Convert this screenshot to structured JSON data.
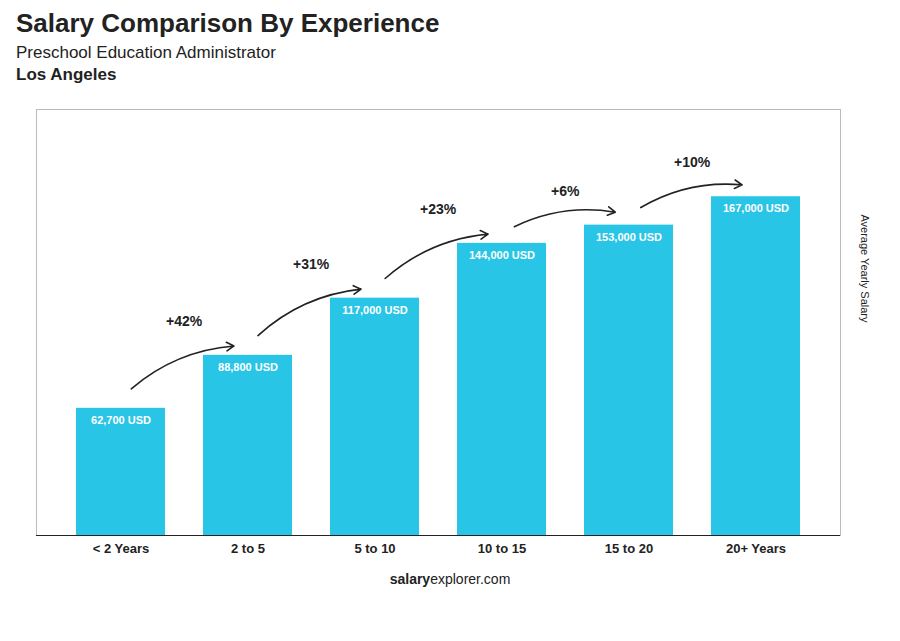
{
  "chart_data": {
    "type": "bar",
    "title": "Salary Comparison By Experience",
    "subtitle": "Preschool Education Administrator",
    "city": "Los Angeles",
    "categories": [
      "< 2 Years",
      "2 to 5",
      "5 to 10",
      "10 to 15",
      "15 to 20",
      "20+ Years"
    ],
    "values": [
      62700,
      88800,
      117000,
      144000,
      153000,
      167000
    ],
    "value_labels": [
      "62,700 USD",
      "88,800 USD",
      "117,000 USD",
      "144,000 USD",
      "153,000 USD",
      "167,000 USD"
    ],
    "data_labels": true,
    "changes": [
      null,
      "+42%",
      "+31%",
      "+23%",
      "+6%",
      "+10%"
    ],
    "color": "#29C5E6",
    "ylabel": "Average Yearly Salary",
    "footer": [
      "salary",
      "explorer.com"
    ],
    "ylim": [
      0,
      210000
    ],
    "tick_labels": "x"
  }
}
